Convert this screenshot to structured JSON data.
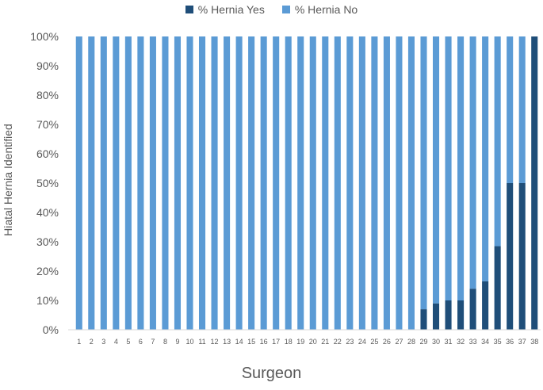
{
  "chart_data": {
    "type": "bar",
    "stacked": true,
    "title": "",
    "xlabel": "Surgeon",
    "ylabel": "Hiatal Hernia Identified",
    "ylim": [
      0,
      100
    ],
    "yticks": [
      "0%",
      "10%",
      "20%",
      "30%",
      "40%",
      "50%",
      "60%",
      "70%",
      "80%",
      "90%",
      "100%"
    ],
    "legend_position": "top",
    "grid": false,
    "categories": [
      "1",
      "2",
      "3",
      "4",
      "5",
      "6",
      "7",
      "8",
      "9",
      "10",
      "11",
      "12",
      "13",
      "14",
      "15",
      "16",
      "17",
      "18",
      "19",
      "20",
      "21",
      "22",
      "23",
      "24",
      "25",
      "26",
      "27",
      "28",
      "29",
      "30",
      "31",
      "32",
      "33",
      "34",
      "35",
      "36",
      "37",
      "38"
    ],
    "series": [
      {
        "name": "% Hernia Yes",
        "color": "#1f4e79",
        "values": [
          0,
          0,
          0,
          0,
          0,
          0,
          0,
          0,
          0,
          0,
          0,
          0,
          0,
          0,
          0,
          0,
          0,
          0,
          0,
          0,
          0,
          0,
          0,
          0,
          0,
          0,
          0,
          0,
          7,
          9,
          10,
          10,
          14,
          16.5,
          28.5,
          50,
          50,
          100
        ]
      },
      {
        "name": "% Hernia No",
        "color": "#5b9bd5",
        "values": [
          100,
          100,
          100,
          100,
          100,
          100,
          100,
          100,
          100,
          100,
          100,
          100,
          100,
          100,
          100,
          100,
          100,
          100,
          100,
          100,
          100,
          100,
          100,
          100,
          100,
          100,
          100,
          100,
          93,
          91,
          90,
          90,
          86,
          83.5,
          71.5,
          50,
          50,
          0
        ]
      }
    ]
  }
}
